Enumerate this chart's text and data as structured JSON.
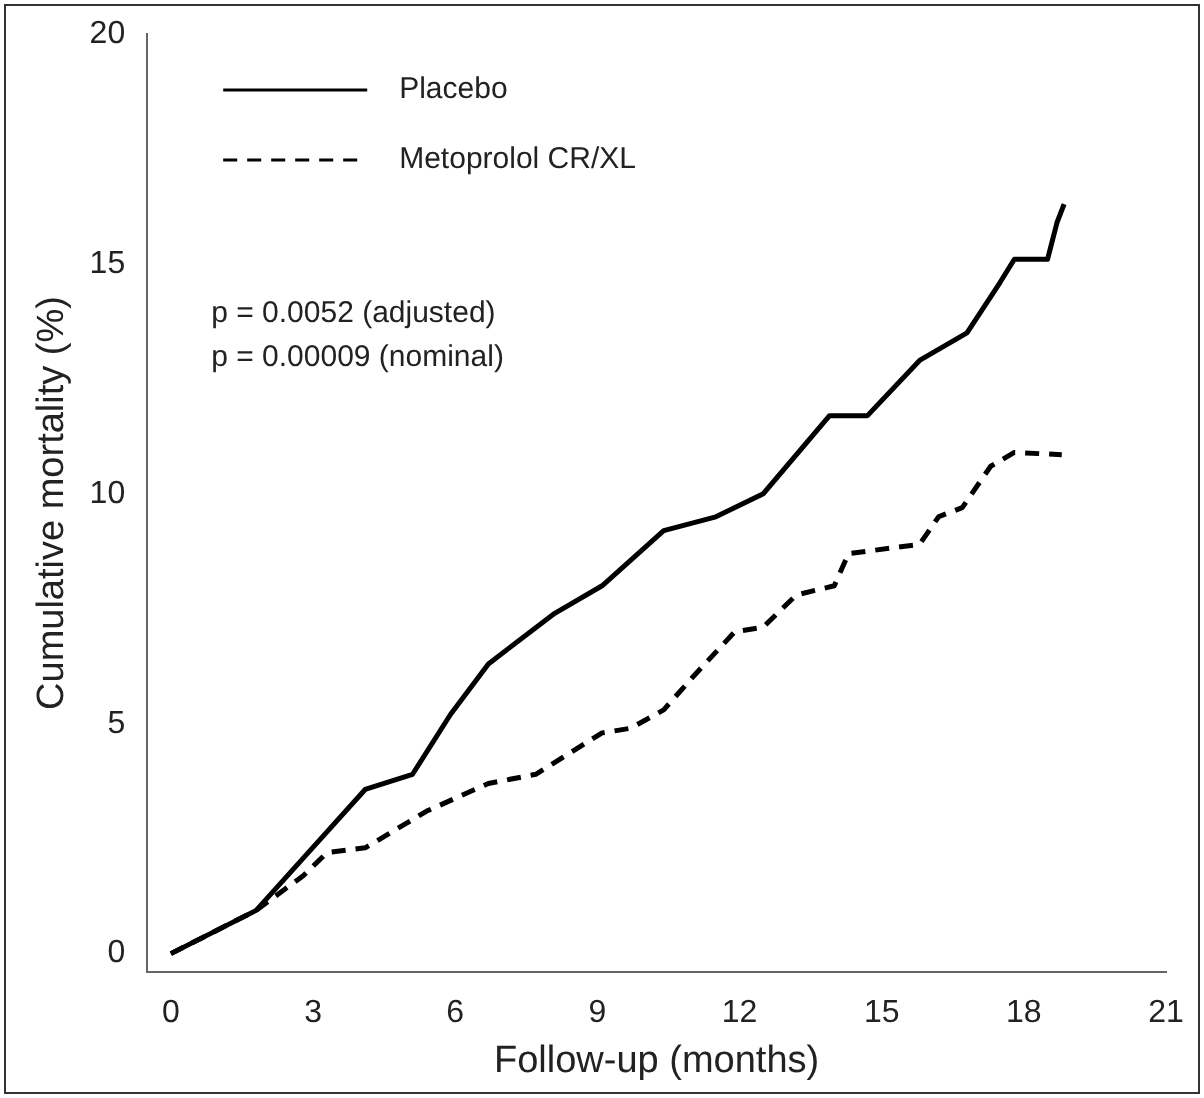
{
  "chart_data": {
    "type": "line",
    "xlabel": "Follow-up (months)",
    "ylabel": "Cumulative mortality (%)",
    "xlim": [
      -0.5,
      21
    ],
    "xticks": [
      0,
      3,
      6,
      9,
      12,
      15,
      18,
      21
    ],
    "ylim": [
      -0.4,
      20
    ],
    "yticks": [
      0,
      5,
      10,
      15,
      20
    ],
    "grid": false,
    "legend": "top left",
    "marker": "none",
    "annotations": [
      "p = 0.0052 (adjusted)",
      "p = 0.00009 (nominal)"
    ],
    "series": [
      {
        "name": "Placebo",
        "color": "#000000",
        "line_style": "solid",
        "x": [
          0,
          1.8,
          3.06,
          4.1,
          5.1,
          5.9,
          6.7,
          8.1,
          9.1,
          10.4,
          11.5,
          12.5,
          13.9,
          14.7,
          15.8,
          16.8,
          17.5,
          17.8,
          18.5,
          18.7,
          18.85
        ],
        "values": [
          0,
          0.94,
          2.38,
          3.57,
          3.9,
          5.2,
          6.3,
          7.4,
          8.0,
          9.2,
          9.5,
          10.0,
          11.7,
          11.7,
          12.9,
          13.5,
          14.6,
          15.1,
          15.1,
          15.9,
          16.3
        ]
      },
      {
        "name": "Metoprolol CR/XL",
        "color": "#000000",
        "line_style": "dashed",
        "x": [
          0,
          1.8,
          2.8,
          3.3,
          4.1,
          5.4,
          6.7,
          7.7,
          9.1,
          9.7,
          10.4,
          11.0,
          11.9,
          12.5,
          13.2,
          14.0,
          14.3,
          15.8,
          16.2,
          16.7,
          17.3,
          17.8,
          18.8
        ],
        "values": [
          0,
          0.94,
          1.7,
          2.2,
          2.3,
          3.1,
          3.7,
          3.9,
          4.8,
          4.9,
          5.3,
          6.0,
          7.0,
          7.1,
          7.8,
          8.0,
          8.7,
          8.9,
          9.5,
          9.7,
          10.6,
          10.9,
          10.85
        ]
      }
    ]
  }
}
